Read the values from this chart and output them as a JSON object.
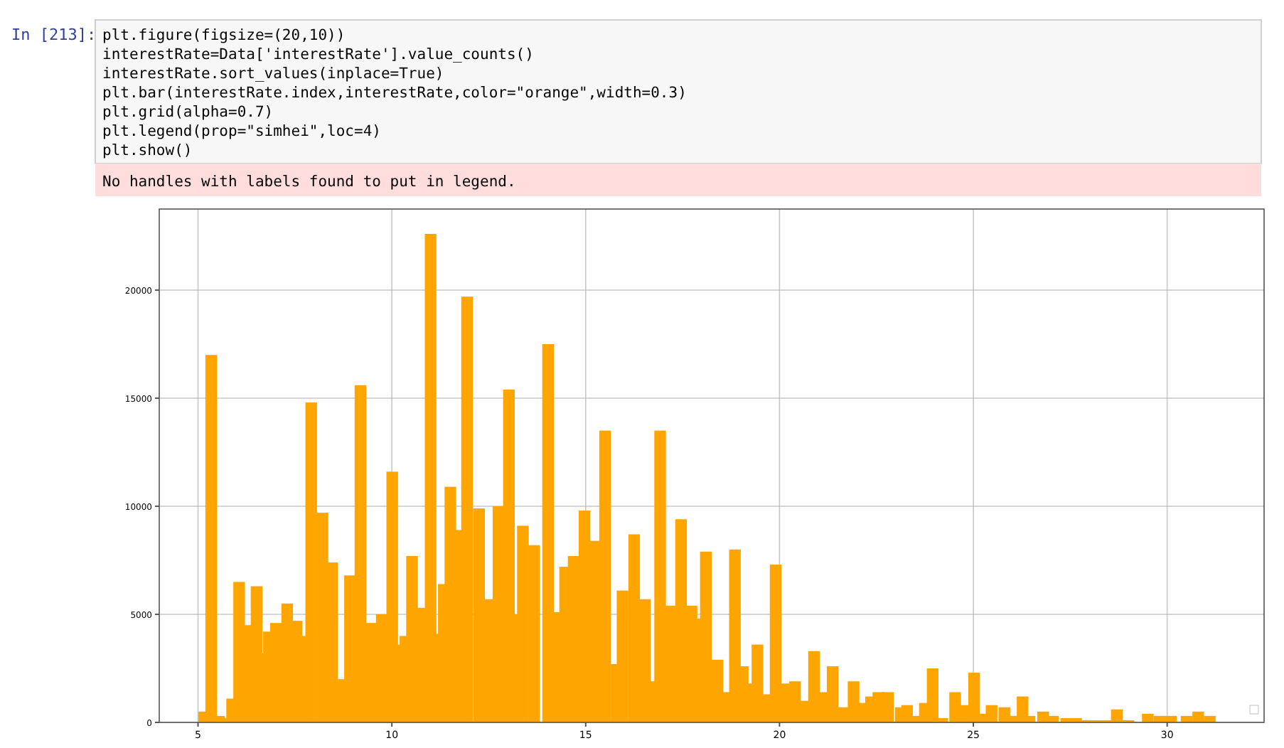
{
  "chart_data": {
    "type": "bar",
    "color": "#ffa500",
    "annotations": [
      "In [213]:",
      "plt.figure(figsize=(20,10))",
      "interestRate=Data['interestRate'].value_counts()",
      "interestRate.sort_values(inplace=True)",
      "plt.bar(interestRate.index,interestRate,color=\"orange\",width=0.3)",
      "plt.grid(alpha=0.7)",
      "plt.legend(prop=\"simhei\",loc=4)",
      "plt.show()",
      "No handles with labels found to put in legend."
    ],
    "x": [
      5.16,
      5.34,
      5.54,
      5.76,
      5.88,
      6.06,
      6.28,
      6.51,
      6.71,
      6.83,
      7.01,
      7.3,
      7.54,
      7.71,
      7.92,
      8.21,
      8.46,
      8.68,
      8.92,
      9.19,
      9.48,
      9.74,
      10.01,
      10.24,
      10.35,
      10.52,
      10.76,
      11.0,
      11.26,
      11.34,
      11.51,
      11.66,
      11.94,
      12.25,
      12.54,
      12.75,
      13.02,
      13.2,
      13.38,
      13.67,
      14.03,
      14.3,
      14.47,
      14.69,
      14.97,
      15.22,
      15.5,
      15.8,
      15.95,
      16.25,
      16.53,
      16.7,
      16.92,
      17.2,
      17.46,
      17.73,
      17.9,
      18.1,
      18.4,
      18.66,
      18.85,
      19.05,
      19.18,
      19.43,
      19.66,
      19.9,
      20.16,
      20.4,
      20.62,
      20.89,
      21.13,
      21.37,
      21.66,
      21.91,
      22.15,
      22.36,
      22.55,
      22.8,
      23.13,
      23.29,
      23.5,
      23.75,
      23.95,
      24.2,
      24.53,
      24.77,
      25.02,
      25.25,
      25.47,
      25.8,
      26.0,
      26.27,
      26.45,
      26.8,
      27.05,
      27.4,
      27.65,
      27.9,
      28.2,
      28.45,
      28.7,
      29.0,
      29.5,
      29.8,
      30.1,
      30.5,
      30.8,
      31.1
    ],
    "values": [
      500,
      17000,
      300,
      200,
      1100,
      6500,
      4500,
      6300,
      3200,
      4200,
      4600,
      5500,
      4700,
      4000,
      14800,
      9700,
      7400,
      2000,
      6800,
      15600,
      4600,
      5000,
      11600,
      3600,
      4000,
      7700,
      5300,
      22600,
      4100,
      6400,
      10900,
      8900,
      19700,
      9900,
      5700,
      10000,
      15400,
      5000,
      9100,
      8200,
      17500,
      5100,
      7200,
      7700,
      9800,
      8400,
      13500,
      2700,
      6100,
      8700,
      5700,
      1900,
      13500,
      5400,
      9400,
      5400,
      4800,
      7900,
      2900,
      1400,
      8000,
      2600,
      1800,
      3600,
      1300,
      7300,
      1800,
      1900,
      1000,
      3300,
      1400,
      2600,
      700,
      1900,
      900,
      1200,
      1400,
      1400,
      700,
      800,
      300,
      900,
      2500,
      200,
      1400,
      800,
      2300,
      400,
      800,
      700,
      300,
      1200,
      300,
      500,
      300,
      200,
      200,
      100,
      100,
      100,
      600,
      100,
      400,
      300,
      300,
      300,
      500,
      300
    ],
    "xlim": [
      4.0,
      32.5
    ],
    "xticks": [
      5,
      10,
      15,
      20,
      25,
      30
    ],
    "ylim": [
      0,
      23750
    ],
    "yticks": [
      0,
      5000,
      10000,
      15000,
      20000
    ],
    "grid": true
  }
}
